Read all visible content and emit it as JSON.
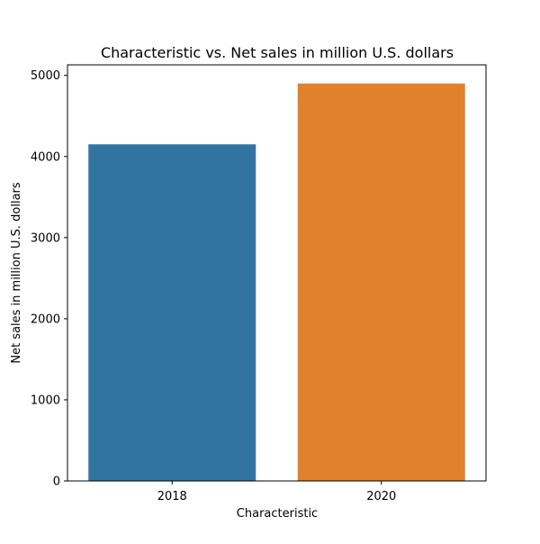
{
  "chart_data": {
    "type": "bar",
    "title": "Characteristic vs. Net sales in million U.S. dollars",
    "xlabel": "Characteristic",
    "ylabel": "Net sales in million U.S. dollars",
    "categories": [
      "2018",
      "2020"
    ],
    "values": [
      4150,
      4900
    ],
    "colors": [
      "#3274a1",
      "#e1812c"
    ],
    "ylim": [
      0,
      5130
    ],
    "yticks": [
      0,
      1000,
      2000,
      3000,
      4000,
      5000
    ],
    "grid": false,
    "legend": "none"
  }
}
